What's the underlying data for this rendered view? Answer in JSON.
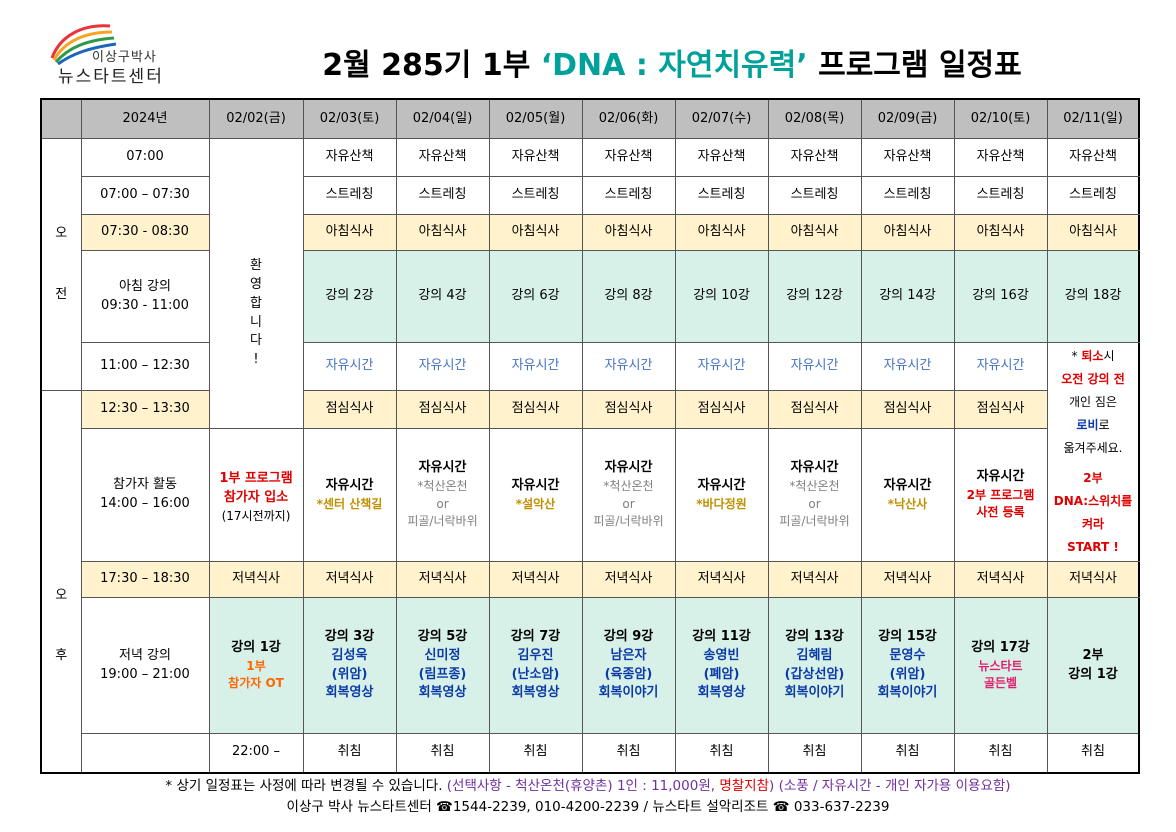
{
  "logo": {
    "top": "이상구박사",
    "main": "뉴스타트센터"
  },
  "title": {
    "before": "2월 285기 1부 ",
    "dna": "‘DNA : 자연치유력’",
    "after": " 프로그램 일정표"
  },
  "header": {
    "year": "2024년",
    "dates": [
      "02/02(금)",
      "02/03(토)",
      "02/04(일)",
      "02/05(월)",
      "02/06(화)",
      "02/07(수)",
      "02/08(목)",
      "02/09(금)",
      "02/10(토)",
      "02/11(일)"
    ]
  },
  "sections": {
    "am_1": "오",
    "am_2": "전",
    "pm_1": "오",
    "pm_2": "후"
  },
  "times": {
    "t0700": "07:00",
    "t0730": "07:00 – 07:30",
    "t0830": "07:30 - 08:30",
    "lecture_am_title": "아침 강의",
    "lecture_am_time": "09:30 - 11:00",
    "t1230": "11:00 – 12:30",
    "t1330": "12:30 – 13:30",
    "activity_title": "참가자 활동",
    "activity_time": "14:00 – 16:00",
    "t1830": "17:30 – 18:30",
    "lecture_pm_title": "저녁 강의",
    "lecture_pm_time": "19:00 – 21:00",
    "t2200": "22:00 –"
  },
  "cells": {
    "walk": "자유산책",
    "stretch": "스트레칭",
    "breakfast": "아침식사",
    "free": "자유시간",
    "lunch": "점심식사",
    "dinner": "저녁식사",
    "sleep": "취침",
    "or": "or",
    "bath": "*척산온천",
    "rock": "피골/너락바위"
  },
  "welcome": [
    "환",
    "영",
    "합",
    "니",
    "다",
    "!"
  ],
  "checkin": {
    "line1": "1부 프로그램",
    "line2": "참가자 입소",
    "line3": "(17시전까지)"
  },
  "morning_lectures": [
    "강의 2강",
    "강의 4강",
    "강의 6강",
    "강의 8강",
    "강의 10강",
    "강의 12강",
    "강의 14강",
    "강의 16강",
    "강의 18강"
  ],
  "departure_note": {
    "l1a": "* ",
    "l1b": "퇴소",
    "l1c": "시",
    "l2": "오전 강의 전",
    "l3": "개인 짐은",
    "l4": "로비",
    "l4b": "로",
    "l5": "옮겨주세요.",
    "l6": "2부",
    "l7": "DNA:스위치를",
    "l8": "켜라",
    "l9": "START !"
  },
  "activities": {
    "feb03": {
      "main": "자유시간",
      "sub": "*센터 산책길"
    },
    "feb05": {
      "main": "자유시간",
      "sub": "*설악산"
    },
    "feb07": {
      "main": "자유시간",
      "sub": "*바다정원"
    },
    "feb09": {
      "main": "자유시간",
      "sub": "*낙산사"
    },
    "feb10": {
      "main": "자유시간",
      "sub1": "2부 프로그램",
      "sub2": "사전 등록"
    }
  },
  "evening": {
    "feb02": {
      "l1": "강의 1강",
      "l2": "1부",
      "l3": "참가자 OT"
    },
    "feb03": {
      "l1": "강의 3강",
      "l2": "김성욱",
      "l3": "(위암)",
      "l4": "회복영상"
    },
    "feb04": {
      "l1": "강의 5강",
      "l2": "신미정",
      "l3": "(림프종)",
      "l4": "회복영상"
    },
    "feb05": {
      "l1": "강의 7강",
      "l2": "김우진",
      "l3": "(난소암)",
      "l4": "회복영상"
    },
    "feb06": {
      "l1": "강의 9강",
      "l2": "남은자",
      "l3": "(육종암)",
      "l4": "회복이야기"
    },
    "feb07": {
      "l1": "강의 11강",
      "l2": "송영빈",
      "l3": "(폐암)",
      "l4": "회복영상"
    },
    "feb08": {
      "l1": "강의 13강",
      "l2": "김혜림",
      "l3": "(갑상선암)",
      "l4": "회복이야기"
    },
    "feb09": {
      "l1": "강의 15강",
      "l2": "문영수",
      "l3": "(위암)",
      "l4": "회복이야기"
    },
    "feb10": {
      "l1": "강의 17강",
      "l2": "뉴스타트",
      "l3": "골든벨"
    },
    "feb11": {
      "l1": "2부",
      "l2": "강의 1강"
    }
  },
  "footer": {
    "a": "* 상기 일정표는 사정에 따라 변경될 수 있습니다. ",
    "b": "(선택사항 - 척산온천(휴양촌) 1인 : 11,000원, ",
    "c": "명찰지참",
    "d": ") (소풍 / 자유시간 - 개인 자가용 이용요함)",
    "line2": "이상구 박사 뉴스타트센터 ☎1544-2239, 010-4200-2239 /  뉴스타트 설악리조트 ☎ 033-637-2239"
  },
  "colors": {
    "teal": "#00a19a",
    "header_gray": "#bfbfbf",
    "meal_yellow": "#fff2cc",
    "lecture_green": "#d7f0e8",
    "free_blue": "#4472c4",
    "red": "#e00000"
  }
}
